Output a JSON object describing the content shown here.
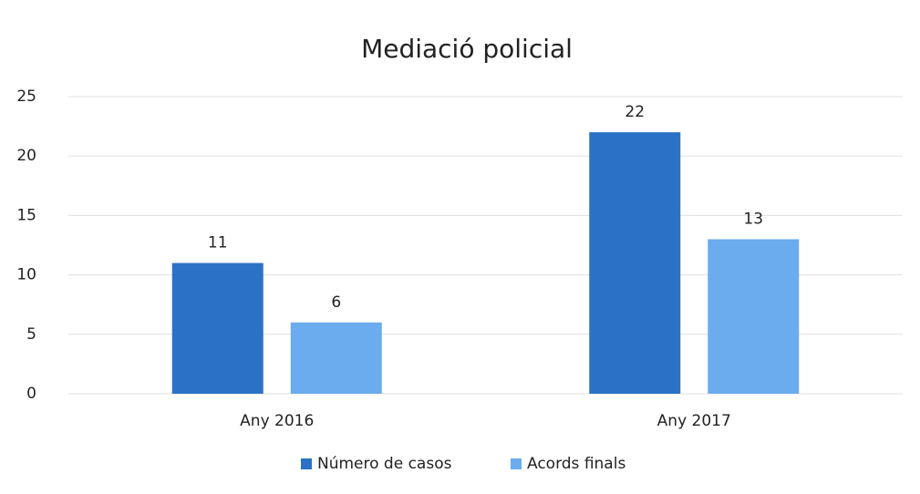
{
  "chart_data": {
    "type": "bar",
    "title": "Mediació policial",
    "categories": [
      "Any 2016",
      "Any 2017"
    ],
    "series": [
      {
        "name": "Número de casos",
        "color": "#2b72c6",
        "values": [
          11,
          22
        ]
      },
      {
        "name": "Acords finals",
        "color": "#6aaced",
        "values": [
          6,
          13
        ]
      }
    ],
    "ylim": [
      0,
      25
    ],
    "yticks": [
      0,
      5,
      10,
      15,
      20,
      25
    ],
    "grid": true,
    "legend": "bottom"
  }
}
